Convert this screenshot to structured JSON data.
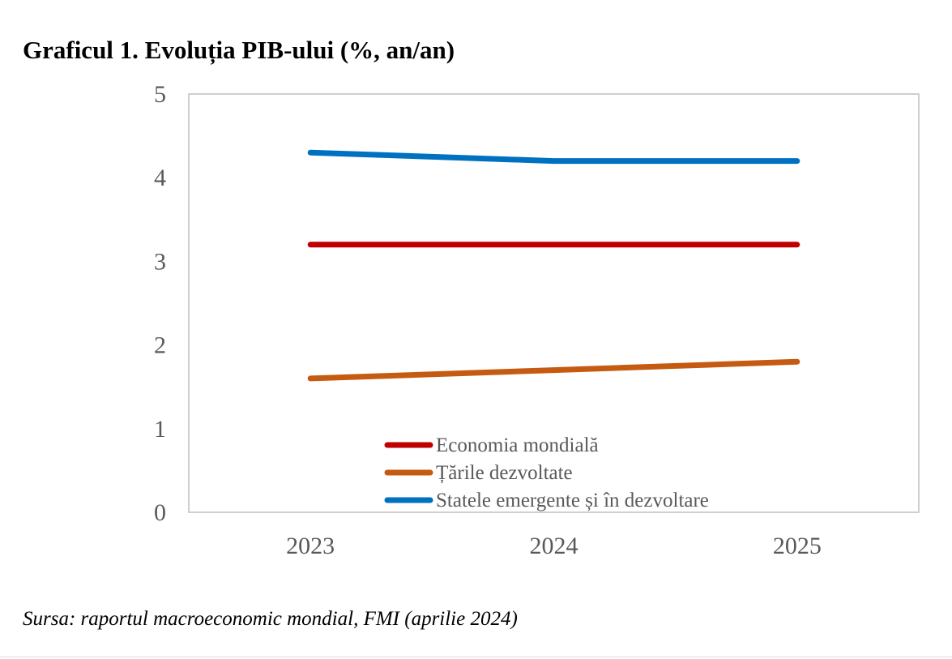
{
  "title": "Graficul 1. Evoluția PIB-ului (%, an/an)",
  "source": "Sursa: raportul macroeconomic mondial, FMI (aprilie 2024)",
  "chart_data": {
    "type": "line",
    "title": "Graficul 1. Evoluția PIB-ului (%, an/an)",
    "xlabel": "",
    "ylabel": "",
    "categories": [
      "2023",
      "2024",
      "2025"
    ],
    "ylim": [
      0,
      5
    ],
    "yticks": [
      0,
      1,
      2,
      3,
      4,
      5
    ],
    "grid": false,
    "legend_position": "bottom-center, inside plot",
    "series": [
      {
        "name": "Economia mondială",
        "values": [
          3.2,
          3.2,
          3.2
        ],
        "color": "#C00000"
      },
      {
        "name": "Țările dezvoltate",
        "values": [
          1.6,
          1.7,
          1.8
        ],
        "color": "#C55A11"
      },
      {
        "name": "Statele emergente și în dezvoltare",
        "values": [
          4.3,
          4.2,
          4.2
        ],
        "color": "#0070C0"
      }
    ]
  }
}
